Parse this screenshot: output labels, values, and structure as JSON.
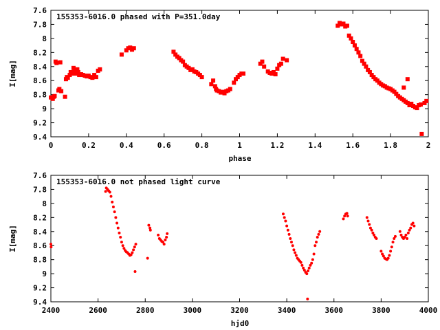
{
  "chart_data": [
    {
      "type": "scatter",
      "title": "155353-6016.0 phased with P=351.0day",
      "xlabel": "phase",
      "ylabel": "I[mag]",
      "xlim": [
        0,
        2
      ],
      "ylim": [
        7.6,
        9.4
      ],
      "y_inverted": true,
      "xticks": [
        0,
        0.2,
        0.4,
        0.6,
        0.8,
        1,
        1.2,
        1.4,
        1.6,
        1.8,
        2
      ],
      "xtick_labels": [
        "0",
        "0.2",
        "0.4",
        "0.6",
        "0.8",
        "1",
        "1.2",
        "1.4",
        "1.6",
        "1.8",
        "2"
      ],
      "yticks": [
        7.6,
        7.8,
        8,
        8.2,
        8.4,
        8.6,
        8.8,
        9,
        9.2,
        9.4
      ],
      "ytick_labels": [
        "7.6",
        "7.8",
        "8",
        "8.2",
        "8.4",
        "8.6",
        "8.8",
        "9",
        "9.2",
        "9.4"
      ],
      "marker": "filled-square",
      "color": "#ff0000",
      "points": [
        [
          0.0,
          8.84
        ],
        [
          0.01,
          8.86
        ],
        [
          0.015,
          8.83
        ],
        [
          0.02,
          8.82
        ],
        [
          0.025,
          8.33
        ],
        [
          0.03,
          8.35
        ],
        [
          0.04,
          8.74
        ],
        [
          0.045,
          8.72
        ],
        [
          0.05,
          8.34
        ],
        [
          0.055,
          8.75
        ],
        [
          0.075,
          8.83
        ],
        [
          0.08,
          8.58
        ],
        [
          0.085,
          8.55
        ],
        [
          0.09,
          8.56
        ],
        [
          0.1,
          8.52
        ],
        [
          0.105,
          8.48
        ],
        [
          0.11,
          8.5
        ],
        [
          0.12,
          8.42
        ],
        [
          0.125,
          8.45
        ],
        [
          0.13,
          8.5
        ],
        [
          0.14,
          8.44
        ],
        [
          0.145,
          8.48
        ],
        [
          0.15,
          8.52
        ],
        [
          0.16,
          8.51
        ],
        [
          0.17,
          8.52
        ],
        [
          0.18,
          8.53
        ],
        [
          0.19,
          8.54
        ],
        [
          0.2,
          8.53
        ],
        [
          0.21,
          8.55
        ],
        [
          0.22,
          8.56
        ],
        [
          0.23,
          8.52
        ],
        [
          0.24,
          8.55
        ],
        [
          0.25,
          8.46
        ],
        [
          0.26,
          8.44
        ],
        [
          0.375,
          8.23
        ],
        [
          0.4,
          8.17
        ],
        [
          0.41,
          8.14
        ],
        [
          0.42,
          8.13
        ],
        [
          0.43,
          8.16
        ],
        [
          0.44,
          8.14
        ],
        [
          0.65,
          8.19
        ],
        [
          0.66,
          8.23
        ],
        [
          0.67,
          8.26
        ],
        [
          0.68,
          8.28
        ],
        [
          0.69,
          8.31
        ],
        [
          0.7,
          8.33
        ],
        [
          0.71,
          8.38
        ],
        [
          0.72,
          8.4
        ],
        [
          0.73,
          8.42
        ],
        [
          0.74,
          8.45
        ],
        [
          0.75,
          8.44
        ],
        [
          0.76,
          8.47
        ],
        [
          0.77,
          8.48
        ],
        [
          0.78,
          8.5
        ],
        [
          0.79,
          8.52
        ],
        [
          0.8,
          8.55
        ],
        [
          0.85,
          8.65
        ],
        [
          0.86,
          8.6
        ],
        [
          0.87,
          8.68
        ],
        [
          0.875,
          8.72
        ],
        [
          0.88,
          8.74
        ],
        [
          0.89,
          8.75
        ],
        [
          0.9,
          8.77
        ],
        [
          0.91,
          8.76
        ],
        [
          0.92,
          8.78
        ],
        [
          0.93,
          8.75
        ],
        [
          0.94,
          8.74
        ],
        [
          0.95,
          8.72
        ],
        [
          0.97,
          8.63
        ],
        [
          0.98,
          8.58
        ],
        [
          0.99,
          8.55
        ],
        [
          1.0,
          8.52
        ],
        [
          1.01,
          8.5
        ],
        [
          1.02,
          8.5
        ],
        [
          1.11,
          8.36
        ],
        [
          1.12,
          8.33
        ],
        [
          1.13,
          8.4
        ],
        [
          1.15,
          8.47
        ],
        [
          1.16,
          8.49
        ],
        [
          1.17,
          8.5
        ],
        [
          1.18,
          8.48
        ],
        [
          1.19,
          8.51
        ],
        [
          1.2,
          8.43
        ],
        [
          1.21,
          8.38
        ],
        [
          1.22,
          8.36
        ],
        [
          1.23,
          8.29
        ],
        [
          1.25,
          8.31
        ],
        [
          1.52,
          7.82
        ],
        [
          1.53,
          7.78
        ],
        [
          1.54,
          7.8
        ],
        [
          1.55,
          7.79
        ],
        [
          1.56,
          7.83
        ],
        [
          1.57,
          7.82
        ],
        [
          1.58,
          7.96
        ],
        [
          1.59,
          8.0
        ],
        [
          1.6,
          8.05
        ],
        [
          1.61,
          8.1
        ],
        [
          1.62,
          8.15
        ],
        [
          1.63,
          8.2
        ],
        [
          1.64,
          8.25
        ],
        [
          1.65,
          8.32
        ],
        [
          1.66,
          8.36
        ],
        [
          1.67,
          8.4
        ],
        [
          1.68,
          8.45
        ],
        [
          1.69,
          8.48
        ],
        [
          1.7,
          8.52
        ],
        [
          1.71,
          8.55
        ],
        [
          1.72,
          8.58
        ],
        [
          1.73,
          8.6
        ],
        [
          1.74,
          8.63
        ],
        [
          1.75,
          8.65
        ],
        [
          1.76,
          8.67
        ],
        [
          1.77,
          8.68
        ],
        [
          1.78,
          8.7
        ],
        [
          1.79,
          8.71
        ],
        [
          1.8,
          8.72
        ],
        [
          1.81,
          8.74
        ],
        [
          1.82,
          8.76
        ],
        [
          1.83,
          8.79
        ],
        [
          1.84,
          8.82
        ],
        [
          1.85,
          8.84
        ],
        [
          1.86,
          8.86
        ],
        [
          1.87,
          8.88
        ],
        [
          1.88,
          8.9
        ],
        [
          1.89,
          8.92
        ],
        [
          1.9,
          8.95
        ],
        [
          1.91,
          8.93
        ],
        [
          1.92,
          8.96
        ],
        [
          1.93,
          8.98
        ],
        [
          1.94,
          8.99
        ],
        [
          1.95,
          8.95
        ],
        [
          1.96,
          8.94
        ],
        [
          1.98,
          8.92
        ],
        [
          1.99,
          8.89
        ],
        [
          1.965,
          9.36
        ],
        [
          1.89,
          8.58
        ],
        [
          1.87,
          8.7
        ]
      ]
    },
    {
      "type": "scatter",
      "title": "155353-6016.0 not phased light curve",
      "xlabel": "hjd0",
      "ylabel": "I[mag]",
      "xlim": [
        2400,
        4000
      ],
      "ylim": [
        7.6,
        9.4
      ],
      "y_inverted": true,
      "xticks": [
        2400,
        2600,
        2800,
        3000,
        3200,
        3400,
        3600,
        3800,
        4000
      ],
      "xtick_labels": [
        "2400",
        "2600",
        "2800",
        "3000",
        "3200",
        "3400",
        "3600",
        "3800",
        "4000"
      ],
      "yticks": [
        7.6,
        7.8,
        8,
        8.2,
        8.4,
        8.6,
        8.8,
        9,
        9.2,
        9.4
      ],
      "ytick_labels": [
        "7.6",
        "7.8",
        "8",
        "8.2",
        "8.4",
        "8.6",
        "8.8",
        "9",
        "9.2",
        "9.4"
      ],
      "marker": "small-dot",
      "color": "#ff0000",
      "points": [
        [
          2400,
          8.58
        ],
        [
          2401,
          8.62
        ],
        [
          2632,
          7.83
        ],
        [
          2635,
          7.78
        ],
        [
          2640,
          7.8
        ],
        [
          2645,
          7.82
        ],
        [
          2650,
          7.84
        ],
        [
          2655,
          7.9
        ],
        [
          2660,
          7.98
        ],
        [
          2665,
          8.05
        ],
        [
          2670,
          8.12
        ],
        [
          2675,
          8.2
        ],
        [
          2680,
          8.28
        ],
        [
          2685,
          8.35
        ],
        [
          2690,
          8.42
        ],
        [
          2695,
          8.48
        ],
        [
          2700,
          8.55
        ],
        [
          2705,
          8.6
        ],
        [
          2710,
          8.64
        ],
        [
          2715,
          8.67
        ],
        [
          2720,
          8.69
        ],
        [
          2725,
          8.7
        ],
        [
          2730,
          8.72
        ],
        [
          2735,
          8.74
        ],
        [
          2740,
          8.73
        ],
        [
          2745,
          8.7
        ],
        [
          2750,
          8.66
        ],
        [
          2755,
          8.62
        ],
        [
          2760,
          8.58
        ],
        [
          2757,
          8.97
        ],
        [
          2810,
          8.78
        ],
        [
          2815,
          8.31
        ],
        [
          2820,
          8.35
        ],
        [
          2822,
          8.38
        ],
        [
          2855,
          8.45
        ],
        [
          2860,
          8.5
        ],
        [
          2865,
          8.52
        ],
        [
          2870,
          8.54
        ],
        [
          2875,
          8.55
        ],
        [
          2880,
          8.58
        ],
        [
          2885,
          8.52
        ],
        [
          2890,
          8.48
        ],
        [
          2893,
          8.43
        ],
        [
          3385,
          8.15
        ],
        [
          3390,
          8.2
        ],
        [
          3395,
          8.25
        ],
        [
          3400,
          8.32
        ],
        [
          3405,
          8.38
        ],
        [
          3410,
          8.44
        ],
        [
          3415,
          8.5
        ],
        [
          3420,
          8.55
        ],
        [
          3425,
          8.6
        ],
        [
          3430,
          8.66
        ],
        [
          3435,
          8.7
        ],
        [
          3440,
          8.74
        ],
        [
          3445,
          8.78
        ],
        [
          3450,
          8.8
        ],
        [
          3455,
          8.82
        ],
        [
          3460,
          8.84
        ],
        [
          3465,
          8.88
        ],
        [
          3470,
          8.92
        ],
        [
          3475,
          8.95
        ],
        [
          3480,
          8.98
        ],
        [
          3485,
          9.0
        ],
        [
          3490,
          8.96
        ],
        [
          3495,
          8.92
        ],
        [
          3500,
          8.88
        ],
        [
          3505,
          8.85
        ],
        [
          3510,
          8.8
        ],
        [
          3515,
          8.72
        ],
        [
          3520,
          8.6
        ],
        [
          3525,
          8.55
        ],
        [
          3530,
          8.48
        ],
        [
          3535,
          8.44
        ],
        [
          3540,
          8.4
        ],
        [
          3488,
          9.36
        ],
        [
          3640,
          8.22
        ],
        [
          3645,
          8.18
        ],
        [
          3650,
          8.15
        ],
        [
          3655,
          8.14
        ],
        [
          3658,
          8.18
        ],
        [
          3740,
          8.2
        ],
        [
          3745,
          8.25
        ],
        [
          3750,
          8.3
        ],
        [
          3755,
          8.35
        ],
        [
          3760,
          8.38
        ],
        [
          3765,
          8.42
        ],
        [
          3770,
          8.45
        ],
        [
          3775,
          8.48
        ],
        [
          3780,
          8.5
        ],
        [
          3800,
          8.68
        ],
        [
          3805,
          8.72
        ],
        [
          3810,
          8.75
        ],
        [
          3815,
          8.78
        ],
        [
          3820,
          8.79
        ],
        [
          3825,
          8.8
        ],
        [
          3830,
          8.78
        ],
        [
          3835,
          8.74
        ],
        [
          3840,
          8.68
        ],
        [
          3845,
          8.62
        ],
        [
          3850,
          8.55
        ],
        [
          3855,
          8.5
        ],
        [
          3860,
          8.47
        ],
        [
          3880,
          8.4
        ],
        [
          3885,
          8.45
        ],
        [
          3890,
          8.48
        ],
        [
          3895,
          8.5
        ],
        [
          3900,
          8.48
        ],
        [
          3905,
          8.45
        ],
        [
          3910,
          8.5
        ],
        [
          3915,
          8.42
        ],
        [
          3920,
          8.38
        ],
        [
          3925,
          8.35
        ],
        [
          3930,
          8.3
        ],
        [
          3935,
          8.28
        ],
        [
          3940,
          8.32
        ]
      ]
    }
  ]
}
